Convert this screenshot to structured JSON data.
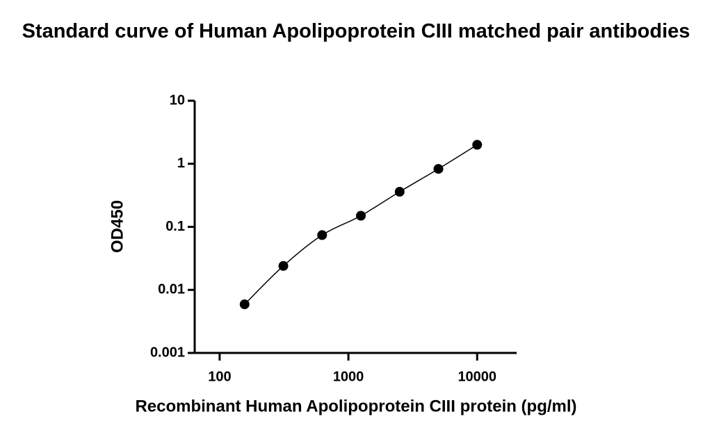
{
  "chart_data": {
    "type": "scatter",
    "title": "Standard curve of Human Apolipoprotein CIII matched pair antibodies",
    "x_label": "Recombinant Human Apolipoprotein CIII protein (pg/ml)",
    "y_label": "OD450",
    "x_log": true,
    "y_log": true,
    "xlim": [
      64,
      20000
    ],
    "xticks": [
      100,
      1000,
      10000
    ],
    "ylim": [
      0.001,
      10
    ],
    "yticks": [
      0.001,
      0.01,
      0.1,
      1,
      10
    ],
    "series": [
      {
        "color": "#000000",
        "x": [
          156.25,
          312.5,
          625,
          1250,
          2500,
          5000,
          10000
        ],
        "values": [
          0.0059,
          0.024,
          0.074,
          0.15,
          0.36,
          0.83,
          2.0
        ]
      }
    ]
  }
}
